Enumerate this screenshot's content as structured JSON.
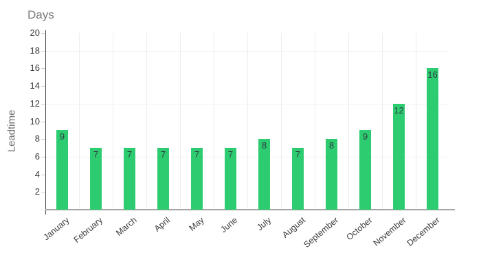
{
  "chart_data": {
    "type": "bar",
    "title": "Days",
    "xlabel": "",
    "ylabel": "Leadtime",
    "categories": [
      "January",
      "February",
      "March",
      "April",
      "May",
      "June",
      "July",
      "August",
      "September",
      "October",
      "November",
      "December"
    ],
    "values": [
      9,
      7,
      7,
      7,
      7,
      7,
      8,
      7,
      8,
      9,
      12,
      16
    ],
    "ylim": [
      0,
      20
    ],
    "ytick_step": 2,
    "ytick_labels": [
      "2",
      "4",
      "6",
      "8",
      "10",
      "12",
      "14",
      "16",
      "18",
      "20"
    ],
    "grid_y_values": [
      6,
      12,
      18
    ],
    "grid": "on",
    "legend_position": "none",
    "x_label_rotation_deg": -40,
    "bar_value_labels_inside": true,
    "colors": {
      "bar": "#2ecc71",
      "bar_value_label": "#2f3b40",
      "y_axis_line": "#444444",
      "x_baseline": "#a6a6a6",
      "gridline": "#ededed",
      "tick_mark": "#cccccc",
      "tick_label": "#3a3a3a",
      "title": "#7a7a7a",
      "background": "#ffffff"
    }
  }
}
